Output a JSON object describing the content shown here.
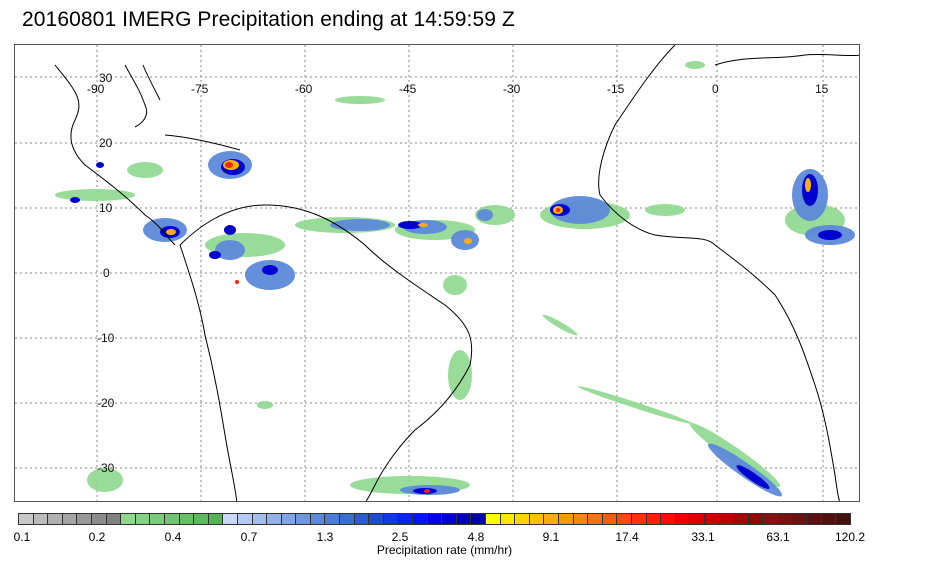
{
  "title": "20160801 IMERG Precipitation ending at 14:59:59 Z",
  "map": {
    "lon_labels": [
      "-90",
      "-75",
      "-60",
      "-45",
      "-30",
      "-15",
      "0",
      "15"
    ],
    "lat_labels": [
      "30",
      "20",
      "10",
      "0",
      "-10",
      "-20",
      "-30"
    ],
    "gridline_style": "dotted",
    "gridline_color": "#888888",
    "coastline_color": "#000000"
  },
  "colorbar": {
    "label": "Precipitation rate (mm/hr)",
    "tick_labels": [
      "0.1",
      "0.2",
      "0.4",
      "0.7",
      "1.3",
      "2.5",
      "4.8",
      "9.1",
      "17.4",
      "33.1",
      "63.1",
      "120.2"
    ],
    "colors": [
      "#c8c8c8",
      "#bcbcbc",
      "#b0b0b0",
      "#a4a4a4",
      "#989898",
      "#8c8c8c",
      "#808080",
      "#8ed88e",
      "#84d284",
      "#7acc7a",
      "#70c670",
      "#66c066",
      "#5cba5c",
      "#52b452",
      "#c8d8f8",
      "#b6cbf3",
      "#a4beee",
      "#92b1e9",
      "#80a4e4",
      "#6e97df",
      "#5c8ada",
      "#4a7dd5",
      "#3870d0",
      "#2a5ed0",
      "#1c4cd8",
      "#0e3ae0",
      "#0528e8",
      "#0016f0",
      "#0000e0",
      "#0000d0",
      "#0000c0",
      "#0000b0",
      "#ffff00",
      "#ffe800",
      "#ffd400",
      "#ffc000",
      "#ffac00",
      "#ff9800",
      "#ff8400",
      "#ff7000",
      "#ff5c00",
      "#ff4800",
      "#ff3400",
      "#ff2000",
      "#ff0c00",
      "#ee0000",
      "#dd0000",
      "#cc0000",
      "#bb0000",
      "#aa0000",
      "#990000",
      "#881010",
      "#7a1010",
      "#6c1010",
      "#5e1010",
      "#501010",
      "#441010"
    ]
  },
  "precip_legend_colors": {
    "light": "#8ed88e",
    "moderate": "#5c8ada",
    "heavy": "#0000d0",
    "intense": "#ffd400",
    "extreme": "#ff3400"
  }
}
